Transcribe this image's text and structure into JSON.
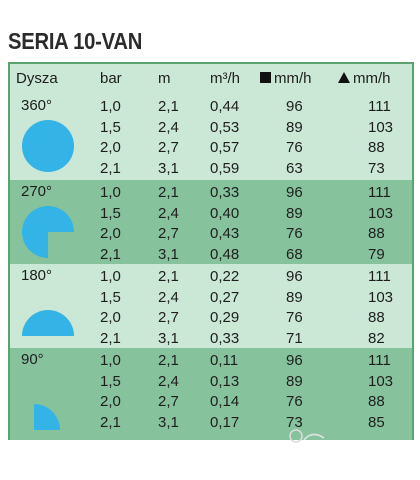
{
  "title": "SERIA 10-VAN",
  "header": {
    "nozzle": "Dysza",
    "pressure": "bar",
    "radius": "m",
    "flow": "m³/h",
    "precip_square": "mm/h",
    "precip_triangle": "mm/h"
  },
  "groups": [
    {
      "angle": "360°",
      "shape": "full-circle-icon",
      "rows": [
        {
          "bar": "1,0",
          "m": "2,1",
          "flow": "0,44",
          "sq": "96",
          "tr": "111"
        },
        {
          "bar": "1,5",
          "m": "2,4",
          "flow": "0,53",
          "sq": "89",
          "tr": "103"
        },
        {
          "bar": "2,0",
          "m": "2,7",
          "flow": "0,57",
          "sq": "76",
          "tr": "88"
        },
        {
          "bar": "2,1",
          "m": "3,1",
          "flow": "0,59",
          "sq": "63",
          "tr": "73"
        }
      ]
    },
    {
      "angle": "270°",
      "shape": "three-quarter-circle-icon",
      "rows": [
        {
          "bar": "1,0",
          "m": "2,1",
          "flow": "0,33",
          "sq": "96",
          "tr": "111"
        },
        {
          "bar": "1,5",
          "m": "2,4",
          "flow": "0,40",
          "sq": "89",
          "tr": "103"
        },
        {
          "bar": "2,0",
          "m": "2,7",
          "flow": "0,43",
          "sq": "76",
          "tr": "88"
        },
        {
          "bar": "2,1",
          "m": "3,1",
          "flow": "0,48",
          "sq": "68",
          "tr": "79"
        }
      ]
    },
    {
      "angle": "180°",
      "shape": "half-circle-icon",
      "rows": [
        {
          "bar": "1,0",
          "m": "2,1",
          "flow": "0,22",
          "sq": "96",
          "tr": "111"
        },
        {
          "bar": "1,5",
          "m": "2,4",
          "flow": "0,27",
          "sq": "89",
          "tr": "103"
        },
        {
          "bar": "2,0",
          "m": "2,7",
          "flow": "0,29",
          "sq": "76",
          "tr": "88"
        },
        {
          "bar": "2,1",
          "m": "3,1",
          "flow": "0,33",
          "sq": "71",
          "tr": "82"
        }
      ]
    },
    {
      "angle": "90°",
      "shape": "quarter-circle-icon",
      "rows": [
        {
          "bar": "1,0",
          "m": "2,1",
          "flow": "0,11",
          "sq": "96",
          "tr": "111"
        },
        {
          "bar": "1,5",
          "m": "2,4",
          "flow": "0,13",
          "sq": "89",
          "tr": "103"
        },
        {
          "bar": "2,0",
          "m": "2,7",
          "flow": "0,14",
          "sq": "76",
          "tr": "88"
        },
        {
          "bar": "2,1",
          "m": "3,1",
          "flow": "0,17",
          "sq": "73",
          "tr": "85"
        }
      ]
    }
  ],
  "colors": {
    "light_band": "#cbe7d6",
    "dark_band": "#86c39d",
    "border": "#58a36f",
    "spray_shape": "#33b3e6"
  }
}
